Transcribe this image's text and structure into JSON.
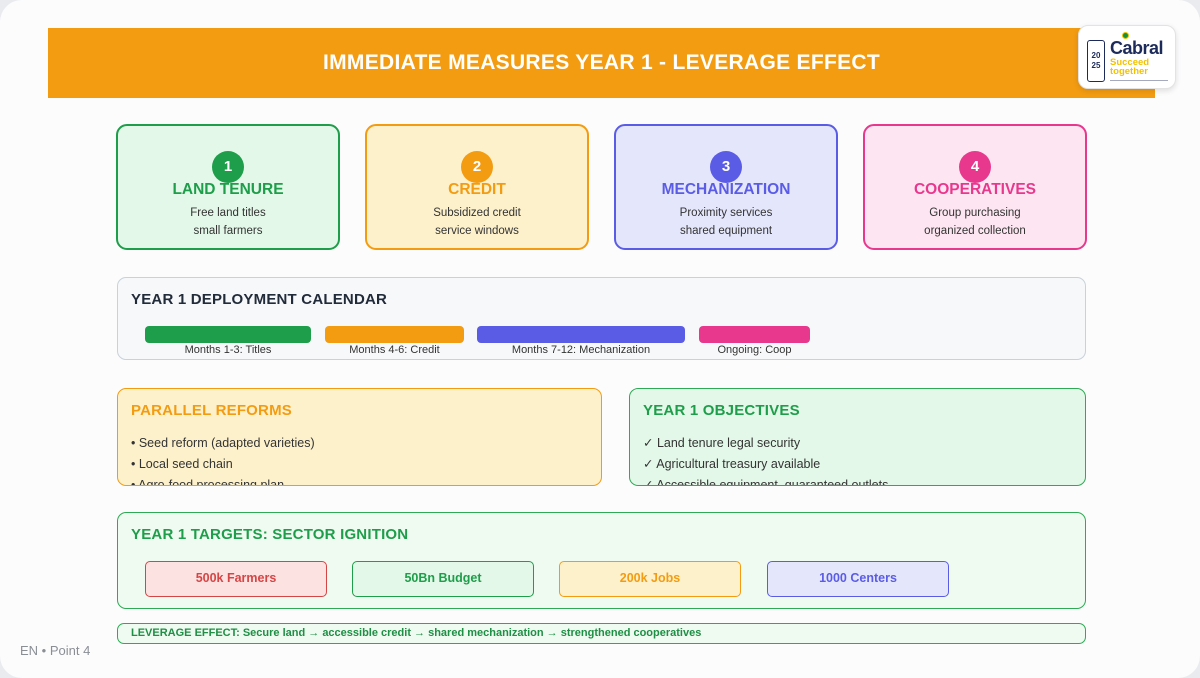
{
  "header": {
    "title": "IMMEDIATE MEASURES YEAR 1 - LEVERAGE EFFECT"
  },
  "logo": {
    "name": "Cabral",
    "tagline": "Succeed together",
    "badge_top": "20",
    "badge_bottom": "25"
  },
  "colors": {
    "accent": "#f39c12",
    "green": "#1e9e4a",
    "orange": "#f39c12",
    "indigo": "#5b5ce6",
    "pink": "#e8388e"
  },
  "cards": [
    {
      "number": "1",
      "title": "LAND TENURE",
      "line1": "Free land titles",
      "line2": "small farmers"
    },
    {
      "number": "2",
      "title": "CREDIT",
      "line1": "Subsidized credit",
      "line2": "service windows"
    },
    {
      "number": "3",
      "title": "MECHANIZATION",
      "line1": "Proximity services",
      "line2": "shared equipment"
    },
    {
      "number": "4",
      "title": "COOPERATIVES",
      "line1": "Group purchasing",
      "line2": "organized collection"
    }
  ],
  "calendar": {
    "title": "YEAR 1 DEPLOYMENT CALENDAR",
    "phases": [
      {
        "label": "Months 1-3: Titles"
      },
      {
        "label": "Months 4-6: Credit"
      },
      {
        "label": "Months 7-12: Mechanization"
      },
      {
        "label": "Ongoing: Coop"
      }
    ]
  },
  "reforms": {
    "title": "PARALLEL REFORMS",
    "items": [
      "• Seed reform (adapted varieties)",
      "• Local seed chain",
      "• Agro-food processing plan"
    ]
  },
  "objectives": {
    "title": "YEAR 1 OBJECTIVES",
    "items": [
      "✓ Land tenure legal security",
      "✓ Agricultural treasury available",
      "✓ Accessible equipment, guaranteed outlets"
    ]
  },
  "targets": {
    "title": "YEAR 1 TARGETS: SECTOR IGNITION",
    "items": [
      "500k Farmers",
      "50Bn Budget",
      "200k Jobs",
      "1000 Centers"
    ]
  },
  "leverage": {
    "text": "LEVERAGE EFFECT: Secure land → accessible credit → shared mechanization → strengthened cooperatives"
  },
  "footer": {
    "text": "EN • Point 4"
  }
}
